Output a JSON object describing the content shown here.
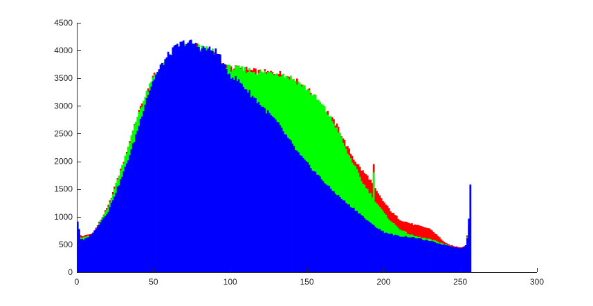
{
  "chart_data": {
    "type": "bar",
    "title": "",
    "xlabel": "",
    "ylabel": "",
    "xlim": [
      0,
      300
    ],
    "ylim": [
      0,
      4500
    ],
    "grid": false,
    "x_ticks": [
      "0",
      "50",
      "100",
      "150",
      "200",
      "250",
      "300"
    ],
    "y_ticks": [
      "0",
      "500",
      "1000",
      "1500",
      "2000",
      "2500",
      "3000",
      "3500",
      "4000",
      "4500"
    ],
    "bin_width": 1,
    "series": [
      {
        "color": "#ff0000",
        "points": [
          [
            0,
            700
          ],
          [
            3,
            650
          ],
          [
            10,
            700
          ],
          [
            20,
            1200
          ],
          [
            30,
            2000
          ],
          [
            40,
            2900
          ],
          [
            50,
            3550
          ],
          [
            60,
            3850
          ],
          [
            70,
            4100
          ],
          [
            80,
            4050
          ],
          [
            90,
            3950
          ],
          [
            95,
            3700
          ],
          [
            100,
            3700
          ],
          [
            110,
            3650
          ],
          [
            120,
            3600
          ],
          [
            130,
            3600
          ],
          [
            140,
            3500
          ],
          [
            150,
            3300
          ],
          [
            160,
            3000
          ],
          [
            170,
            2600
          ],
          [
            175,
            2300
          ],
          [
            180,
            2050
          ],
          [
            185,
            1850
          ],
          [
            190,
            1700
          ],
          [
            195,
            1450
          ],
          [
            200,
            1250
          ],
          [
            205,
            1080
          ],
          [
            210,
            950
          ],
          [
            215,
            900
          ],
          [
            220,
            850
          ],
          [
            225,
            820
          ],
          [
            230,
            780
          ],
          [
            235,
            650
          ],
          [
            240,
            520
          ],
          [
            245,
            470
          ],
          [
            250,
            450
          ],
          [
            253,
            480
          ],
          [
            255,
            850
          ],
          [
            256,
            1600
          ]
        ],
        "spikes": [
          [
            193,
            1950
          ]
        ]
      },
      {
        "color": "#00ff00",
        "points": [
          [
            0,
            650
          ],
          [
            3,
            620
          ],
          [
            10,
            680
          ],
          [
            20,
            1180
          ],
          [
            30,
            2000
          ],
          [
            40,
            2900
          ],
          [
            50,
            3550
          ],
          [
            60,
            3850
          ],
          [
            70,
            4100
          ],
          [
            80,
            4050
          ],
          [
            90,
            3950
          ],
          [
            95,
            3700
          ],
          [
            100,
            3680
          ],
          [
            110,
            3650
          ],
          [
            120,
            3600
          ],
          [
            130,
            3600
          ],
          [
            140,
            3500
          ],
          [
            150,
            3300
          ],
          [
            160,
            3000
          ],
          [
            170,
            2550
          ],
          [
            175,
            2200
          ],
          [
            180,
            1950
          ],
          [
            185,
            1650
          ],
          [
            190,
            1450
          ],
          [
            195,
            1250
          ],
          [
            200,
            1050
          ],
          [
            205,
            900
          ],
          [
            210,
            780
          ],
          [
            215,
            700
          ],
          [
            220,
            650
          ],
          [
            225,
            620
          ],
          [
            230,
            590
          ],
          [
            235,
            550
          ],
          [
            240,
            500
          ],
          [
            245,
            450
          ],
          [
            250,
            420
          ],
          [
            253,
            450
          ],
          [
            255,
            800
          ],
          [
            256,
            1500
          ]
        ],
        "spikes": [
          [
            193,
            1800
          ]
        ]
      },
      {
        "color": "#0000ff",
        "points": [
          [
            0,
            920
          ],
          [
            1,
            780
          ],
          [
            2,
            600
          ],
          [
            4,
            580
          ],
          [
            8,
            660
          ],
          [
            12,
            780
          ],
          [
            16,
            950
          ],
          [
            20,
            1100
          ],
          [
            25,
            1450
          ],
          [
            30,
            1800
          ],
          [
            35,
            2200
          ],
          [
            40,
            2650
          ],
          [
            45,
            3150
          ],
          [
            50,
            3500
          ],
          [
            55,
            3750
          ],
          [
            60,
            3950
          ],
          [
            65,
            4080
          ],
          [
            70,
            4150
          ],
          [
            75,
            4130
          ],
          [
            80,
            4050
          ],
          [
            85,
            4020
          ],
          [
            90,
            3980
          ],
          [
            93,
            3900
          ],
          [
            95,
            3720
          ],
          [
            100,
            3550
          ],
          [
            105,
            3450
          ],
          [
            110,
            3300
          ],
          [
            115,
            3150
          ],
          [
            120,
            3000
          ],
          [
            125,
            2850
          ],
          [
            130,
            2700
          ],
          [
            135,
            2500
          ],
          [
            140,
            2300
          ],
          [
            145,
            2100
          ],
          [
            150,
            1950
          ],
          [
            155,
            1800
          ],
          [
            160,
            1650
          ],
          [
            165,
            1500
          ],
          [
            170,
            1380
          ],
          [
            175,
            1250
          ],
          [
            180,
            1150
          ],
          [
            185,
            1030
          ],
          [
            190,
            900
          ],
          [
            195,
            800
          ],
          [
            200,
            720
          ],
          [
            205,
            680
          ],
          [
            210,
            650
          ],
          [
            215,
            640
          ],
          [
            220,
            620
          ],
          [
            225,
            590
          ],
          [
            230,
            560
          ],
          [
            235,
            520
          ],
          [
            240,
            490
          ],
          [
            245,
            460
          ],
          [
            250,
            430
          ],
          [
            253,
            480
          ],
          [
            254,
            620
          ],
          [
            255,
            950
          ],
          [
            256,
            1600
          ]
        ],
        "spikes": [
          [
            193,
            850
          ]
        ]
      }
    ]
  }
}
